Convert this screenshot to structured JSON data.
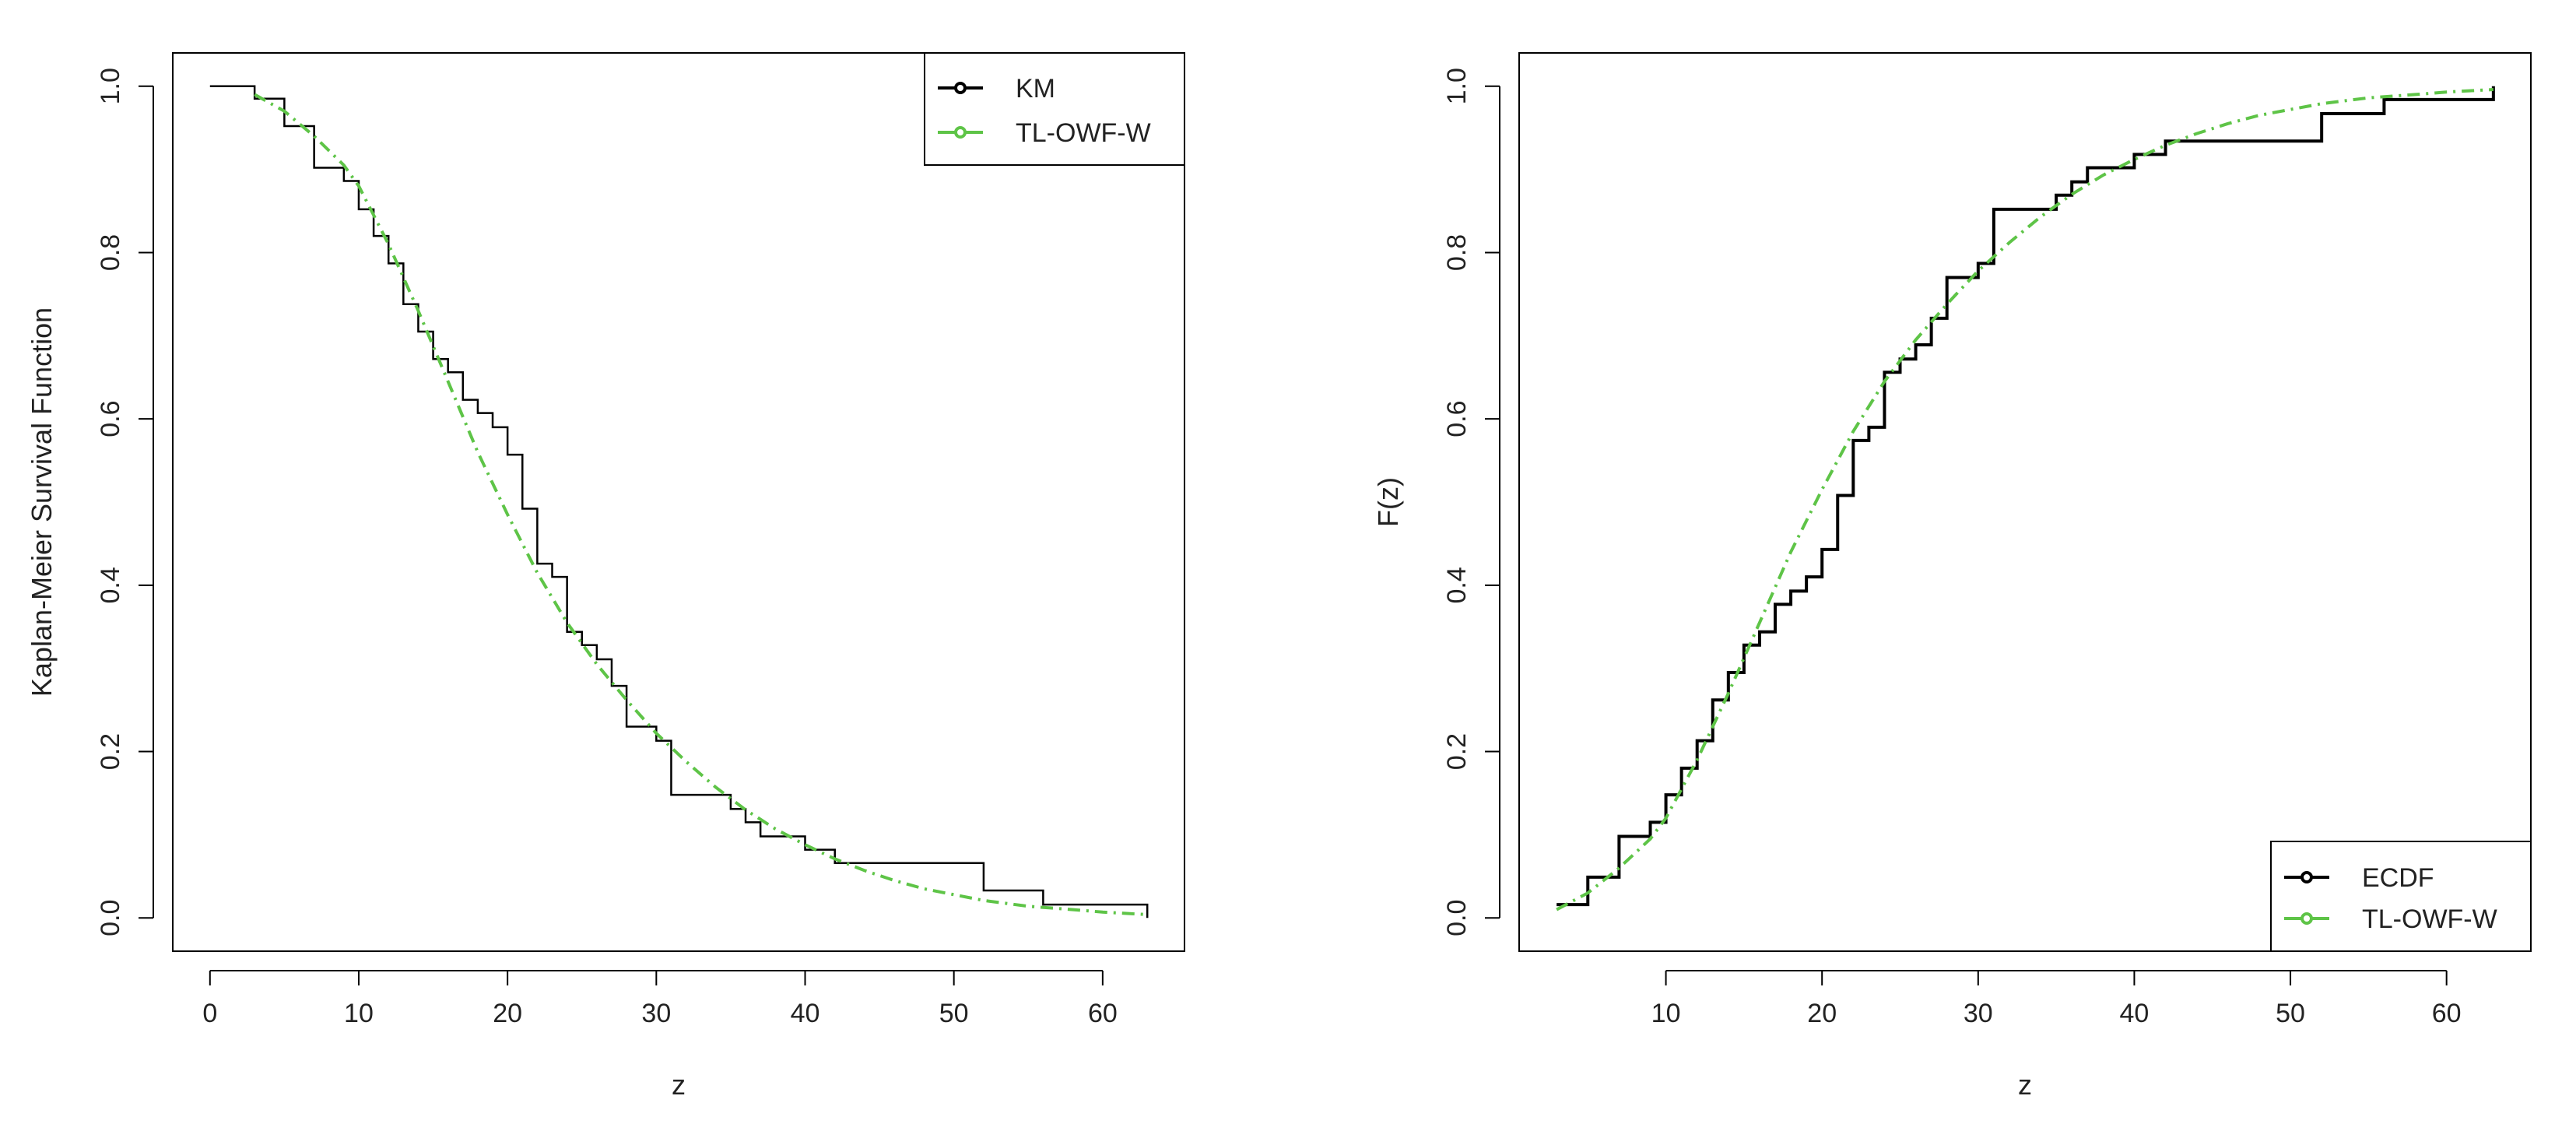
{
  "chart_data": [
    {
      "type": "line",
      "title": "",
      "xlabel": "z",
      "ylabel": "Kaplan-Meier Survival Function",
      "xlim": [
        -2.5,
        65.5
      ],
      "ylim": [
        -0.04,
        1.04
      ],
      "xticks": [
        0,
        10,
        20,
        30,
        40,
        50,
        60
      ],
      "yticks": [
        0.0,
        0.2,
        0.4,
        0.6,
        0.8,
        1.0
      ],
      "xtick_labels": [
        "0",
        "10",
        "20",
        "30",
        "40",
        "50",
        "60"
      ],
      "ytick_labels": [
        "0.0",
        "0.2",
        "0.4",
        "0.6",
        "0.8",
        "1.0"
      ],
      "legend_position": "top-right",
      "series": [
        {
          "name": "KM",
          "style": "step",
          "color": "#000000",
          "x": [
            0,
            3,
            5,
            7,
            9,
            10,
            11,
            12,
            13,
            14,
            15,
            16,
            17,
            18,
            19,
            20,
            21,
            22,
            23,
            24,
            25,
            26,
            27,
            28,
            30,
            31,
            35,
            36,
            37,
            40,
            42,
            52,
            56,
            63
          ],
          "y": [
            1.0,
            0.985,
            0.952,
            0.902,
            0.886,
            0.852,
            0.82,
            0.787,
            0.738,
            0.705,
            0.672,
            0.656,
            0.623,
            0.607,
            0.59,
            0.557,
            0.492,
            0.426,
            0.41,
            0.344,
            0.328,
            0.311,
            0.279,
            0.23,
            0.213,
            0.148,
            0.131,
            0.115,
            0.098,
            0.082,
            0.066,
            0.033,
            0.016,
            0.0
          ]
        },
        {
          "name": "TL-OWF-W",
          "style": "dashdot",
          "color": "#5ec447",
          "x": [
            3,
            5,
            7,
            9,
            10,
            12,
            14,
            16,
            18,
            20,
            22,
            24,
            26,
            28,
            30,
            32,
            34,
            36,
            38,
            40,
            42,
            44,
            46,
            48,
            50,
            52,
            55,
            58,
            60,
            63
          ],
          "y": [
            0.99,
            0.97,
            0.94,
            0.905,
            0.88,
            0.81,
            0.73,
            0.645,
            0.56,
            0.485,
            0.415,
            0.355,
            0.305,
            0.262,
            0.222,
            0.188,
            0.157,
            0.13,
            0.107,
            0.088,
            0.071,
            0.057,
            0.045,
            0.035,
            0.028,
            0.021,
            0.014,
            0.01,
            0.007,
            0.004
          ]
        }
      ]
    },
    {
      "type": "line",
      "title": "",
      "xlabel": "z",
      "ylabel": "F(z)",
      "xlim": [
        0.6,
        65.4
      ],
      "ylim": [
        -0.04,
        1.04
      ],
      "xticks": [
        10,
        20,
        30,
        40,
        50,
        60
      ],
      "yticks": [
        0.0,
        0.2,
        0.4,
        0.6,
        0.8,
        1.0
      ],
      "xtick_labels": [
        "10",
        "20",
        "30",
        "40",
        "50",
        "60"
      ],
      "ytick_labels": [
        "0.0",
        "0.2",
        "0.4",
        "0.6",
        "0.8",
        "1.0"
      ],
      "legend_position": "bottom-right",
      "series": [
        {
          "name": "ECDF",
          "style": "step",
          "color": "#000000",
          "x": [
            3,
            5,
            7,
            9,
            10,
            11,
            12,
            13,
            14,
            15,
            16,
            17,
            18,
            19,
            20,
            21,
            22,
            23,
            24,
            25,
            26,
            27,
            28,
            30,
            31,
            35,
            36,
            37,
            40,
            42,
            52,
            56,
            63
          ],
          "y": [
            0.016,
            0.049,
            0.098,
            0.115,
            0.148,
            0.18,
            0.213,
            0.262,
            0.295,
            0.328,
            0.344,
            0.377,
            0.393,
            0.41,
            0.443,
            0.508,
            0.574,
            0.59,
            0.656,
            0.672,
            0.689,
            0.721,
            0.77,
            0.787,
            0.852,
            0.869,
            0.885,
            0.902,
            0.918,
            0.934,
            0.967,
            0.984,
            1.0
          ]
        },
        {
          "name": "TL-OWF-W",
          "style": "dashdot",
          "color": "#5ec447",
          "x": [
            3,
            5,
            7,
            9,
            10,
            12,
            14,
            16,
            18,
            20,
            22,
            24,
            26,
            28,
            30,
            32,
            34,
            36,
            38,
            40,
            42,
            44,
            46,
            48,
            50,
            52,
            55,
            58,
            60,
            63
          ],
          "y": [
            0.01,
            0.03,
            0.06,
            0.095,
            0.12,
            0.19,
            0.27,
            0.355,
            0.44,
            0.515,
            0.585,
            0.645,
            0.695,
            0.738,
            0.778,
            0.812,
            0.843,
            0.87,
            0.893,
            0.912,
            0.929,
            0.943,
            0.955,
            0.965,
            0.972,
            0.979,
            0.986,
            0.99,
            0.993,
            0.996
          ]
        }
      ]
    }
  ]
}
